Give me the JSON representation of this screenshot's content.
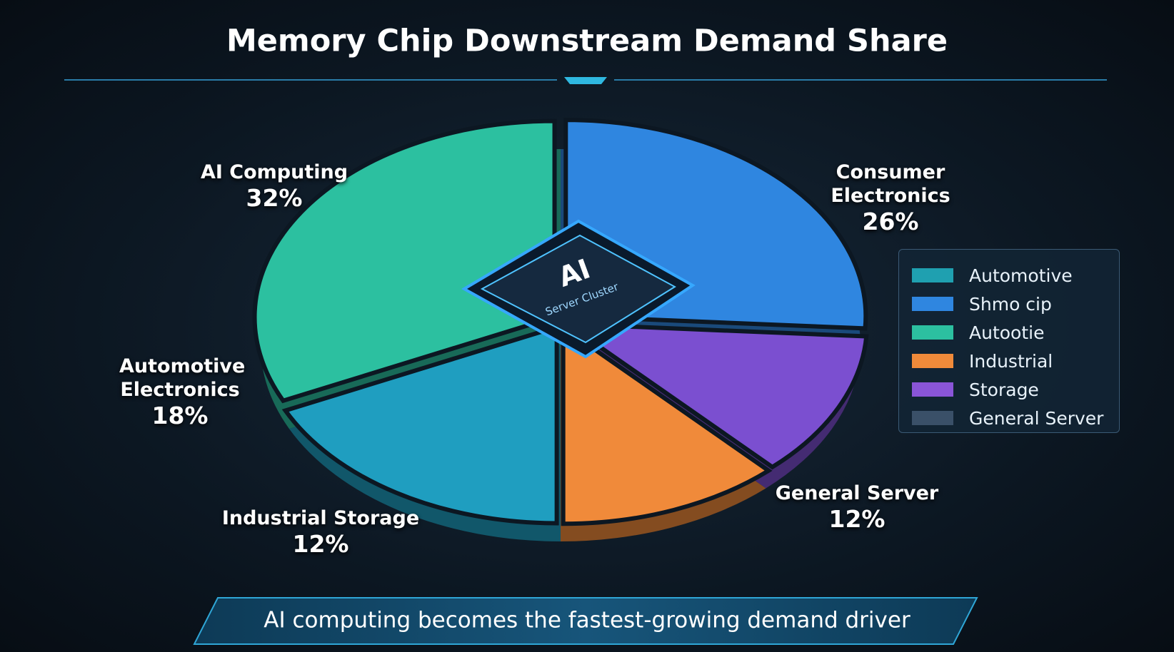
{
  "chart_data": {
    "type": "pie",
    "title": "Memory Chip Downstream Demand Share",
    "categories": [
      "Consumer Electronics",
      "General Server",
      "Industrial Storage",
      "Automotive Electronics",
      "AI Computing"
    ],
    "values": [
      26,
      12,
      12,
      18,
      32
    ],
    "value_labels": [
      "26%",
      "12%",
      "12%",
      "18%",
      "32%"
    ],
    "colors": [
      "#2f86e0",
      "#7b4fd0",
      "#f08a3a",
      "#1f9ec0",
      "#2cc0a0"
    ],
    "center_labels": [
      "AI",
      "Server Cluster"
    ],
    "legend": {
      "position": "right",
      "entries": [
        {
          "name": "Automotive",
          "color": "#1fa0b0"
        },
        {
          "name": "Shmo cip",
          "color": "#2f86e0"
        },
        {
          "name": "Autootie",
          "color": "#2cc0a0"
        },
        {
          "name": "Industrial",
          "color": "#f08a3a"
        },
        {
          "name": "Storage",
          "color": "#8a55d8"
        },
        {
          "name": "General Server",
          "color": "#3a5068"
        }
      ]
    },
    "annotation": "AI computing becomes the fastest-growing demand driver"
  }
}
